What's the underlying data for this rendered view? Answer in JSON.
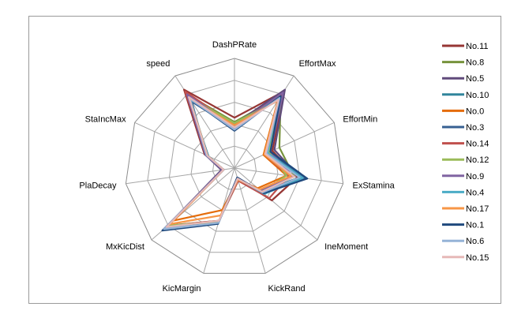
{
  "chart_data": {
    "type": "radar",
    "title": "",
    "axes": [
      "DashPRate",
      "EffortMax",
      "EffortMin",
      "ExStamina",
      "IneMoment",
      "KickRand",
      "KicMargin",
      "MxKicDist",
      "PlaDecay",
      "StaIncMax",
      "speed"
    ],
    "r_range": [
      0,
      1
    ],
    "rings": 5,
    "grid": true,
    "legend_position": "right",
    "series": [
      {
        "name": "No.11",
        "color": "#963634",
        "values": [
          0.46,
          0.83,
          0.38,
          0.58,
          0.45,
          0.1,
          0.52,
          0.82,
          0.1,
          0.3,
          0.85
        ]
      },
      {
        "name": "No.8",
        "color": "#77933c",
        "values": [
          0.42,
          0.78,
          0.45,
          0.55,
          0.3,
          0.12,
          0.5,
          0.8,
          0.1,
          0.28,
          0.8
        ]
      },
      {
        "name": "No.5",
        "color": "#604a7b",
        "values": [
          0.4,
          0.85,
          0.4,
          0.6,
          0.36,
          0.09,
          0.52,
          0.83,
          0.12,
          0.29,
          0.8
        ]
      },
      {
        "name": "No.10",
        "color": "#31859c",
        "values": [
          0.38,
          0.77,
          0.32,
          0.6,
          0.32,
          0.1,
          0.5,
          0.85,
          0.1,
          0.26,
          0.78
        ]
      },
      {
        "name": "No.0",
        "color": "#e46c0a",
        "values": [
          0.4,
          0.73,
          0.29,
          0.48,
          0.28,
          0.11,
          0.4,
          0.73,
          0.1,
          0.27,
          0.78
        ]
      },
      {
        "name": "No.3",
        "color": "#376092",
        "values": [
          0.36,
          0.8,
          0.35,
          0.65,
          0.34,
          0.09,
          0.52,
          0.84,
          0.1,
          0.28,
          0.72
        ]
      },
      {
        "name": "No.14",
        "color": "#c0504d",
        "values": [
          0.39,
          0.8,
          0.3,
          0.5,
          0.42,
          0.12,
          0.5,
          0.8,
          0.1,
          0.27,
          0.83
        ]
      },
      {
        "name": "No.12",
        "color": "#9bbb59",
        "values": [
          0.41,
          0.75,
          0.35,
          0.48,
          0.33,
          0.1,
          0.51,
          0.8,
          0.1,
          0.28,
          0.77
        ]
      },
      {
        "name": "No.9",
        "color": "#8064a2",
        "values": [
          0.37,
          0.82,
          0.36,
          0.54,
          0.31,
          0.1,
          0.52,
          0.86,
          0.11,
          0.29,
          0.8
        ]
      },
      {
        "name": "No.4",
        "color": "#4bacc6",
        "values": [
          0.38,
          0.76,
          0.33,
          0.63,
          0.36,
          0.1,
          0.53,
          0.83,
          0.1,
          0.27,
          0.74
        ]
      },
      {
        "name": "No.17",
        "color": "#f79646",
        "values": [
          0.39,
          0.74,
          0.3,
          0.52,
          0.3,
          0.11,
          0.45,
          0.78,
          0.1,
          0.27,
          0.75
        ]
      },
      {
        "name": "No.1",
        "color": "#1f497d",
        "values": [
          0.34,
          0.78,
          0.36,
          0.67,
          0.35,
          0.09,
          0.53,
          0.87,
          0.1,
          0.28,
          0.75
        ]
      },
      {
        "name": "No.6",
        "color": "#95b3d7",
        "values": [
          0.35,
          0.76,
          0.32,
          0.6,
          0.34,
          0.1,
          0.52,
          0.85,
          0.1,
          0.28,
          0.75
        ]
      },
      {
        "name": "No.15",
        "color": "#e6b9b8",
        "values": [
          0.37,
          0.74,
          0.31,
          0.55,
          0.33,
          0.1,
          0.5,
          0.82,
          0.1,
          0.27,
          0.77
        ]
      }
    ]
  }
}
